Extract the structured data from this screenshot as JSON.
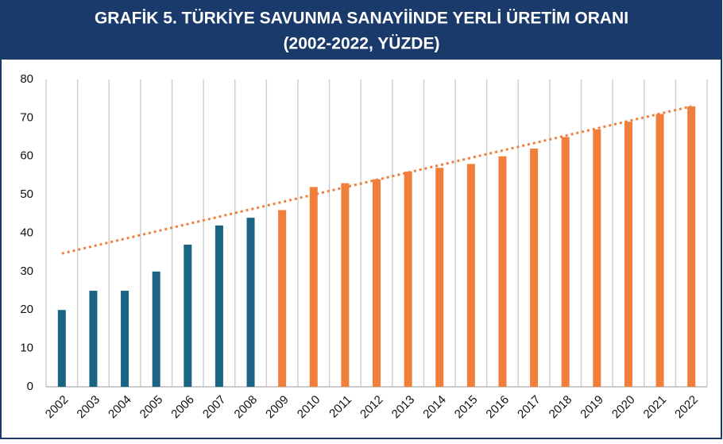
{
  "chart_data": {
    "type": "bar",
    "title": "GRAFİK 5. TÜRKİYE SAVUNMA SANAYİİNDE YERLİ ÜRETİM ORANI",
    "subtitle": "(2002-2022, YÜZDE)",
    "categories": [
      "2002",
      "2003",
      "2004",
      "2005",
      "2006",
      "2007",
      "2008",
      "2009",
      "2010",
      "2011",
      "2012",
      "2013",
      "2014",
      "2015",
      "2016",
      "2017",
      "2018",
      "2019",
      "2020",
      "2021",
      "2022"
    ],
    "values": [
      20,
      25,
      25,
      30,
      37,
      42,
      44,
      46,
      52,
      53,
      54,
      56,
      57,
      58,
      60,
      62,
      65,
      67,
      69,
      71,
      73
    ],
    "colors": [
      "#1b6484",
      "#1b6484",
      "#1b6484",
      "#1b6484",
      "#1b6484",
      "#1b6484",
      "#1b6484",
      "#f07f3c",
      "#f07f3c",
      "#f07f3c",
      "#f07f3c",
      "#f07f3c",
      "#f07f3c",
      "#f07f3c",
      "#f07f3c",
      "#f07f3c",
      "#f07f3c",
      "#f07f3c",
      "#f07f3c",
      "#f07f3c",
      "#f07f3c"
    ],
    "trendline": {
      "start": 34.7,
      "end": 73,
      "color": "#f07f3c",
      "style": "dotted"
    },
    "ylim": [
      0,
      80
    ],
    "yticks": [
      0,
      10,
      20,
      30,
      40,
      50,
      60,
      70,
      80
    ],
    "grid": "x"
  }
}
